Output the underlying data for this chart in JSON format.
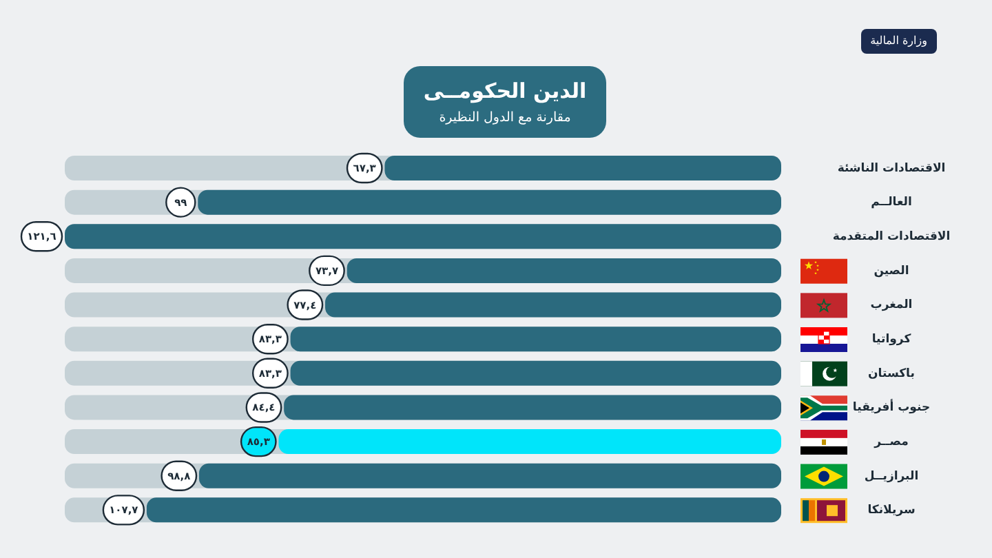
{
  "chart_data": {
    "type": "bar",
    "orientation": "horizontal",
    "title": "الدين  الحكومــى",
    "subtitle": "مقارنة مع الدول النظيرة",
    "categories": [
      "الاقتصادات الناشئة",
      "العالــم",
      "الاقتصادات المتقدمة",
      "الصين",
      "المغرب",
      "كرواتيا",
      "باكستان",
      "جنوب أفريقيا",
      "مصــر",
      "البرازيــل",
      "سريلانكا"
    ],
    "values": [
      67.3,
      99,
      121.6,
      73.7,
      77.4,
      83.3,
      83.3,
      84.4,
      85.3,
      98.8,
      107.7
    ],
    "colors": [
      "#2b6a7e",
      "#2b6a7e",
      "#2b6a7e",
      "#2b6a7e",
      "#2b6a7e",
      "#2b6a7e",
      "#2b6a7e",
      "#2b6a7e",
      "#00e5fa",
      "#2b6a7e",
      "#2b6a7e"
    ],
    "value_labels": [
      "٦٧,٣",
      "٩٩",
      "١٢١,٦",
      "٧٣,٧",
      "٧٧,٤",
      "٨٣,٣",
      "٨٣,٣",
      "٨٤,٤",
      "٨٥,٣",
      "٩٨,٨",
      "١٠٧,٧"
    ],
    "annotations": [
      "وزارة المالية"
    ]
  }
}
